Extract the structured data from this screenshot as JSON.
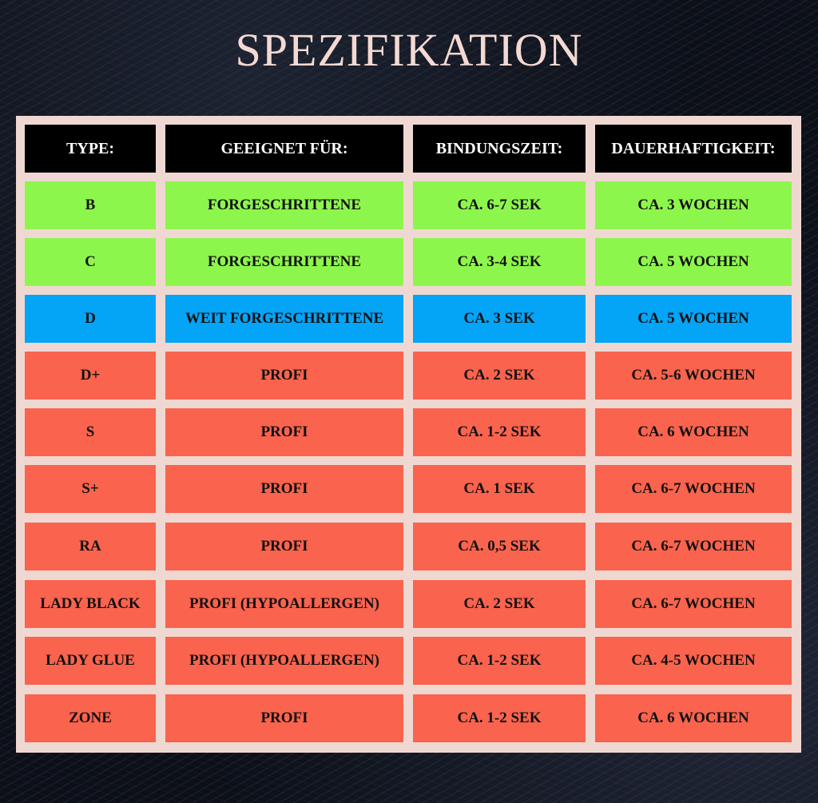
{
  "title": "SPEZIFIKATION",
  "colors": {
    "background": "#0b0f18",
    "title": "#f3d9d2",
    "table_border": "#f0d8d2",
    "header": "#000000",
    "green": "#8df64c",
    "blue": "#04a4f7",
    "red": "#fa634d"
  },
  "table": {
    "headers": [
      "TYPE:",
      "GEEIGNET FÜR:",
      "BINDUNGSZEIT:",
      "DAUERHAFTIGKEIT:"
    ],
    "rows": [
      {
        "color": "green",
        "cells": [
          "B",
          "FORGESCHRITTENE",
          "CA. 6-7 SEK",
          "CA. 3 WOCHEN"
        ]
      },
      {
        "color": "green",
        "cells": [
          "C",
          "FORGESCHRITTENE",
          "CA. 3-4 SEK",
          "CA. 5 WOCHEN"
        ]
      },
      {
        "color": "blue",
        "cells": [
          "D",
          "WEIT FORGESCHRITTENE",
          "CA. 3 SEK",
          "CA. 5 WOCHEN"
        ]
      },
      {
        "color": "red",
        "cells": [
          "D+",
          "PROFI",
          "CA. 2 SEK",
          "CA. 5-6 WOCHEN"
        ]
      },
      {
        "color": "red",
        "cells": [
          "S",
          "PROFI",
          "CA. 1-2 SEK",
          "CA. 6 WOCHEN"
        ]
      },
      {
        "color": "red",
        "cells": [
          "S+",
          "PROFI",
          "CA. 1 SEK",
          "CA. 6-7 WOCHEN"
        ]
      },
      {
        "color": "red",
        "cells": [
          "RA",
          "PROFI",
          "CA. 0,5 SEK",
          "CA. 6-7 WOCHEN"
        ]
      },
      {
        "color": "red",
        "cells": [
          "LADY BLACK",
          "PROFI (HYPOALLERGEN)",
          "CA. 2 SEK",
          "CA. 6-7 WOCHEN"
        ]
      },
      {
        "color": "red",
        "cells": [
          "LADY GLUE",
          "PROFI (HYPOALLERGEN)",
          "CA. 1-2 SEK",
          "CA. 4-5 WOCHEN"
        ]
      },
      {
        "color": "red",
        "cells": [
          "ZONE",
          "PROFI",
          "CA. 1-2 SEK",
          "CA. 6 WOCHEN"
        ]
      }
    ]
  }
}
